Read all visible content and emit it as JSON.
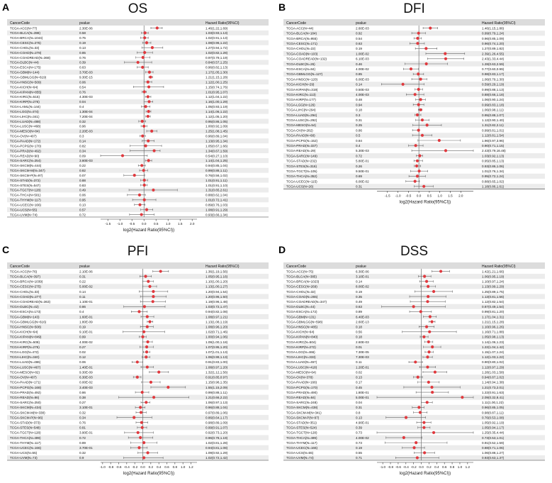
{
  "figure": {
    "panel_letters": [
      "A",
      "B",
      "C",
      "D"
    ]
  },
  "chart_data": [
    {
      "type": "forest",
      "letter": "A",
      "title": "OS",
      "headers": [
        "CancerCode",
        "pvalue",
        "Hazard Ratio(95%CI)"
      ],
      "xlabel": "log2(Hazard Ratio(95%CI))",
      "xlim": [
        -1.8,
        2.2
      ],
      "xticks": [
        "-1.5",
        "-1.0",
        "-0.5",
        "0.0",
        "0.5",
        "1.0",
        "1.5",
        "2.0"
      ],
      "rows": [
        {
          "code": "TCGA-ACC(N=77)",
          "p": "2.30E-06",
          "hr": "1.46(1.22,1.69)"
        },
        {
          "code": "TCGA-BLCA(N=398)",
          "p": "0.58",
          "hr": "1.03(0.93,1.13)"
        },
        {
          "code": "TCGA-BRCA(N=1044)",
          "p": "0.75",
          "hr": "1.02(0.91,1.13)"
        },
        {
          "code": "TCGA-CESC(N=275)",
          "p": "0.19",
          "hr": "1.08(0.96,1.22)"
        },
        {
          "code": "TCGA-CHOL(N=33)",
          "p": "0.13",
          "hr": "1.27(0.94,1.72)"
        },
        {
          "code": "TCGA-COAD(N=278)",
          "p": "0.85",
          "hr": "1.02(0.82,1.28)"
        },
        {
          "code": "TCGA-COADREAD(N=368)",
          "p": "0.76",
          "hr": "0.97(0.79,1.19)"
        },
        {
          "code": "TCGA-DLBC(N=44)",
          "p": "0.39",
          "hr": "0.84(0.57,1.25)"
        },
        {
          "code": "TCGA-ESCA(N=175)",
          "p": "0.63",
          "hr": "0.96(0.82,1.13)"
        },
        {
          "code": "TCGA-GBM(N=144)",
          "p": "3.70E-03",
          "hr": "1.17(1.05,1.30)"
        },
        {
          "code": "TCGA-GBMLGG(N=619)",
          "p": "9.30E-15",
          "hr": "1.21(1.15,1.28)"
        },
        {
          "code": "TCGA-HNSC(N=509)",
          "p": "0.06",
          "hr": "1.12(1.00,1.25)"
        },
        {
          "code": "TCGA-KICH(N=64)",
          "p": "0.54",
          "hr": "1.15(0.74,1.76)"
        },
        {
          "code": "TCGA-KIPAN(N=855)",
          "p": "0.76",
          "hr": "1.01(0.95,1.07)"
        },
        {
          "code": "TCGA-KIRC(N=515)",
          "p": "4.30E-03",
          "hr": "1.12(1.04,1.22)"
        },
        {
          "code": "TCGA-KIRP(N=276)",
          "p": "0.04",
          "hr": "1.16(1.00,1.29)"
        },
        {
          "code": "TCGA-LAML(N=144)",
          "p": "0.4",
          "hr": "1.05(0.93,1.19)"
        },
        {
          "code": "TCGA-LGG(N=474)",
          "p": "1.30E-04",
          "hr": "1.14(1.06,1.22)"
        },
        {
          "code": "TCGA-LIHC(N=341)",
          "p": "7.20E-04",
          "hr": "1.12(1.05,1.20)"
        },
        {
          "code": "TCGA-LUAD(N=488)",
          "p": "0.32",
          "hr": "0.95(0.86,1.05)"
        },
        {
          "code": "TCGA-LUSC(N=468)",
          "p": "0.96",
          "hr": "1.00(0.92,1.09)"
        },
        {
          "code": "TCGA-MESO(N=84)",
          "p": "2.20E-03",
          "hr": "1.25(1.08,1.45)"
        },
        {
          "code": "TCGA-OV(N=407)",
          "p": "0.3",
          "hr": "0.96(0.89,1.04)"
        },
        {
          "code": "TCGA-PAAD(N=172)",
          "p": "0.14",
          "hr": "1.13(0.95,1.34)"
        },
        {
          "code": "TCGA-PCPG(N=170)",
          "p": "0.82",
          "hr": "1.05(0.67,1.66)"
        },
        {
          "code": "TCGA-PRAD(N=492)",
          "p": "0.34",
          "hr": "1.34(0.67,1.59)"
        },
        {
          "code": "TCGA-READ(N=90)",
          "p": "0.09",
          "hr": "0.54(0.27,1.10)"
        },
        {
          "code": "TCGA-SARC(N=254)",
          "p": "3.80E-03",
          "hr": "1.14(1.04,1.25)"
        },
        {
          "code": "TCGA-SKCM(N=444)",
          "p": "0.22",
          "hr": "0.94(0.85,1.04)"
        },
        {
          "code": "TCGA-SKCM-M(N=347)",
          "p": "0.82",
          "hr": "0.99(0.88,1.11)"
        },
        {
          "code": "TCGA-SKCM-P(N=97)",
          "p": "0.07",
          "hr": "0.76(0.56,1.02)"
        },
        {
          "code": "TCGA-STAD(N=372)",
          "p": "0.88",
          "hr": "1.01(0.91,1.11)"
        },
        {
          "code": "TCGA-STES(N=547)",
          "p": "0.83",
          "hr": "1.01(0.91,1.10)"
        },
        {
          "code": "TCGA-TGCT(N=128)",
          "p": "0.49",
          "hr": "1.31(0.65,2.61)"
        },
        {
          "code": "TCGA-THCA(N=501)",
          "p": "0.06",
          "hr": "0.88(0.62,1.04)"
        },
        {
          "code": "TCGA-THYM(N=117)",
          "p": "0.95",
          "hr": "1.01(0.72,1.41)"
        },
        {
          "code": "TCGA-UCEC(N=166)",
          "p": "0.13",
          "hr": "0.89(0.76,1.03)"
        },
        {
          "code": "TCGA-UCS(N=55)",
          "p": "0.57",
          "hr": "1.08(0.91,1.29)"
        },
        {
          "code": "TCGA-UVM(N=74)",
          "p": "0.72",
          "hr": "0.93(0.66,1.34)"
        }
      ]
    },
    {
      "type": "forest",
      "letter": "B",
      "title": "DFI",
      "headers": [
        "CancerCode",
        "pvalue",
        "Hazard Ratio(95%CI)"
      ],
      "xlabel": "log2(Hazard Ratio(95%CI))",
      "xlim": [
        -2.0,
        2.6
      ],
      "xticks": [
        "-1.5",
        "-1.0",
        "-0.5",
        "0.0",
        "0.5",
        "1.0",
        "1.5",
        "2.0"
      ],
      "rows": [
        {
          "code": "TCGA-ACC(N=44)",
          "p": "2.60E-03",
          "hr": "1.46(1.15,1.86)"
        },
        {
          "code": "TCGA-BLCA(N=184)",
          "p": "0.92",
          "hr": "0.99(0.79,1.24)"
        },
        {
          "code": "TCGA-BRCA(N=955)",
          "p": "0.54",
          "hr": "0.96(0.85,1.09)"
        },
        {
          "code": "TCGA-CESC(N=171)",
          "p": "0.63",
          "hr": "0.96(0.74,1.20)"
        },
        {
          "code": "TCGA-CHOL(N=22)",
          "p": "0.19",
          "hr": "1.27(0.89,1.82)"
        },
        {
          "code": "TCGA-COAD(N=103)",
          "p": "1.00E-02",
          "hr": "2.39(1.26,4.55)"
        },
        {
          "code": "TCGA-COADREAD(N=132)",
          "p": "6.10E-03",
          "hr": "2.43(1.33,4.44)"
        },
        {
          "code": "TCGA-DLBC(N=26)",
          "p": "0.46",
          "hr": "1.28(0.63,2.59)"
        },
        {
          "code": "TCGA-ESCA(N=84)",
          "p": "4.00E-02",
          "hr": "0.77(0.60,0.99)"
        },
        {
          "code": "TCGA-GBMLGG(N=127)",
          "p": "0.85",
          "hr": "0.98(0.83,1.17)"
        },
        {
          "code": "TCGA-HNSC(N=120)",
          "p": "6.00E-03",
          "hr": "1.06(0.79,1.30)"
        },
        {
          "code": "TCGA-KICH(N=29)",
          "p": "0.14",
          "hr": "0.59(0.29,1.19)"
        },
        {
          "code": "TCGA-KIPAN(N=319)",
          "p": "0.50E-03",
          "hr": "0.99(0.88,1.13)"
        },
        {
          "code": "TCGA-KIRC(N=113)",
          "p": "4.00E-03",
          "hr": "0.88(0.66,1.18)"
        },
        {
          "code": "TCGA-KIRP(N=177)",
          "p": "0.48",
          "hr": "1.06(0.90,1.24)"
        },
        {
          "code": "TCGA-LGG(N=126)",
          "p": "0.94",
          "hr": "0.99(0.83,1.18)"
        },
        {
          "code": "TCGA-LIHC(N=294)",
          "p": "0.18",
          "hr": "1.06(0.98,1.11)"
        },
        {
          "code": "TCGA-LUAD(N=294)",
          "p": "0.3",
          "hr": "0.95(0.88,1.07)"
        },
        {
          "code": "TCGA-LUSC(N=292)",
          "p": "0.31",
          "hr": "1.12(0.90,1.40)"
        },
        {
          "code": "TCGA-MESO(N=54)",
          "p": "0.25",
          "hr": "1.31(0.82,2.11)"
        },
        {
          "code": "TCGA-OV(N=282)",
          "p": "0.86",
          "hr": "0.99(0.81,1.01)"
        },
        {
          "code": "TCGA-PAAD(N=68)",
          "p": "0.5",
          "hr": "1.12(0.81,1.54)"
        },
        {
          "code": "TCGA-PCPG(N=152)",
          "p": "0.84",
          "hr": "1.96(0.97,3.96)"
        },
        {
          "code": "TCGA-PRAD(N=337)",
          "p": "0.4",
          "hr": "0.90(0.71,1.15)"
        },
        {
          "code": "TCGA-READ(N=29)",
          "p": "5.30E-03",
          "hr": "2.43(0.79,16.48)"
        },
        {
          "code": "TCGA-SARC(N=149)",
          "p": "0.72",
          "hr": "1.03(0.92,1.13)"
        },
        {
          "code": "TCGA-STAD(N=232)",
          "p": "5.80E-01",
          "hr": "0.95(0.85,1.13)"
        },
        {
          "code": "TCGA-STES(N=316)",
          "p": "0.26",
          "hr": "0.93(0.86,1.06)"
        },
        {
          "code": "TCGA-TGCT(N=105)",
          "p": "9.50E-01",
          "hr": "1.01(0.76,1.34)"
        },
        {
          "code": "TCGA-THCA(N=352)",
          "p": "0.69",
          "hr": "0.95(0.72,1.24)"
        },
        {
          "code": "TCGA-UCEC(N=115)",
          "p": "6.00E-02",
          "hr": "0.88(0.65,1.02)"
        },
        {
          "code": "TCGA-UCS(N=26)",
          "p": "0.31",
          "hr": "1.18(0.86,1.61)"
        }
      ]
    },
    {
      "type": "forest",
      "letter": "C",
      "title": "PFI",
      "headers": [
        "CancerCode",
        "pvalue",
        "Hazard Ratio(95%CI)"
      ],
      "xlabel": "log2(Hazard Ratio(95%CI))",
      "xlim": [
        -1.05,
        1.35
      ],
      "xticks": [
        "-1.0",
        "-0.8",
        "-0.6",
        "-0.4",
        "-0.2",
        "0.0",
        "0.2",
        "0.4",
        "0.6",
        "0.8",
        "1.0",
        "1.2"
      ],
      "rows": [
        {
          "code": "TCGA-ACC(N=76)",
          "p": "2.10E-06",
          "hr": "1.36(1.19,1.56)"
        },
        {
          "code": "TCGA-BLCA(N=397)",
          "p": "0.31",
          "hr": "1.05(0.95,1.16)"
        },
        {
          "code": "TCGA-BRCA(N=1039)",
          "p": "0.22",
          "hr": "1.10(1.00,1.20)"
        },
        {
          "code": "TCGA-CESC(N=275)",
          "p": "5.00E-02",
          "hr": "1.13(1.00,1.27)"
        },
        {
          "code": "TCGA-CHOL(N=33)",
          "p": "0.14",
          "hr": "1.20(0.94,1.54)"
        },
        {
          "code": "TCGA-COAD(N=277)",
          "p": "0.11",
          "hr": "1.20(0.96,1.50)"
        },
        {
          "code": "TCGA-COADREAD(N=363)",
          "p": "1.10E-01",
          "hr": "1.19(0.96,1.48)"
        },
        {
          "code": "TCGA-DLBC(N=42)",
          "p": "0.86",
          "hr": "1.03(0.72,1.47)"
        },
        {
          "code": "TCGA-ESCA(N=173)",
          "p": "0.4",
          "hr": "0.94(0.82,1.08)"
        },
        {
          "code": "TCGA-GBM(N=143)",
          "p": "1.60E-01",
          "hr": "1.08(0.97,1.21)"
        },
        {
          "code": "TCGA-GBMLGG(N=616)",
          "p": "1.80E-09",
          "hr": "1.13(1.08,1.19)"
        },
        {
          "code": "TCGA-HNSC(N=508)",
          "p": "0.19",
          "hr": "1.08(0.96,1.20)"
        },
        {
          "code": "TCGA-KICH(N=64)",
          "p": "9.10E-01",
          "hr": "1.02(0.71,1.46)"
        },
        {
          "code": "TCGA-KIPAN(N=849)",
          "p": "0.99",
          "hr": "1.00(0.94,1.06)"
        },
        {
          "code": "TCGA-KIRC(N=508)",
          "p": "4.00E-02",
          "hr": "1.09(1.00,1.18)"
        },
        {
          "code": "TCGA-KIRP(N=275)",
          "p": "0.27",
          "hr": "1.07(0.95,1.20)"
        },
        {
          "code": "TCGA-LGG(N=472)",
          "p": "0.02",
          "hr": "1.07(1.01,1.13)"
        },
        {
          "code": "TCGA-LIHC(N=340)",
          "p": "0.12",
          "hr": "1.06(0.99,1.13)"
        },
        {
          "code": "TCGA-LUAD(N=486)",
          "p": "0.06",
          "hr": "0.91(0.83,1.00)"
        },
        {
          "code": "TCGA-LUSC(N=467)",
          "p": "1.40E-01",
          "hr": "1.08(0.97,1.20)"
        },
        {
          "code": "TCGA-MESO(N=82)",
          "p": "9.30E-09",
          "hr": "1.32(1.12,1.56)"
        },
        {
          "code": "TCGA-OV(N=407)",
          "p": "6.30E-03",
          "hr": "0.91(0.85,0.97)"
        },
        {
          "code": "TCGA-PAAD(N=171)",
          "p": "0.00E-02",
          "hr": "1.15(0.98,1.35)"
        },
        {
          "code": "TCGA-PCPG(N=168)",
          "p": "3.40E-03",
          "hr": "1.55(1.15,2.09)"
        },
        {
          "code": "TCGA-PRAD(N=492)",
          "p": "0.86",
          "hr": "0.99(0.88,1.11)"
        },
        {
          "code": "TCGA-READ(N=86)",
          "p": "0.38",
          "hr": "1.21(0.66,2.22)"
        },
        {
          "code": "TCGA-SARC(N=250)",
          "p": "0.27",
          "hr": "1.06(0.97,1.13)"
        },
        {
          "code": "TCGA-SKCM(N=434)",
          "p": "3.10E-01",
          "hr": "0.96(0.88,1.04)"
        },
        {
          "code": "TCGA-SKCM-M(N=338)",
          "p": "0.32",
          "hr": "0.97(0.89,1.06)"
        },
        {
          "code": "TCGA-SKCM-P(N=96)",
          "p": "0.34",
          "hr": "0.86(0.64,1.17)"
        },
        {
          "code": "TCGA-STAD(N=373)",
          "p": "0.76",
          "hr": "0.98(0.89,1.09)"
        },
        {
          "code": "TCGA-STES(N=548)",
          "p": "0.81",
          "hr": "0.99(0.91,1.07)"
        },
        {
          "code": "TCGA-TGCT(N=128)",
          "p": "3.90E-01",
          "hr": "0.92(0.73,1.20)"
        },
        {
          "code": "TCGA-THCA(N=499)",
          "p": "0.72",
          "hr": "0.96(0.78,1.19)"
        },
        {
          "code": "TCGA-THYM(N=117)",
          "p": "0.89",
          "hr": "1.02(0.81,1.28)"
        },
        {
          "code": "TCGA-UCEC(N=166)",
          "p": "3.70E-01",
          "hr": "0.94(0.81,1.08)"
        },
        {
          "code": "TCGA-UCS(N=55)",
          "p": "0.32",
          "hr": "1.09(0.92,1.29)"
        },
        {
          "code": "TCGA-UVM(N=73)",
          "p": "0.9",
          "hr": "1.02(0.72,1.42)"
        }
      ]
    },
    {
      "type": "forest",
      "letter": "D",
      "title": "DSS",
      "headers": [
        "CancerCode",
        "pvalue",
        "Hazard Ratio(95%CI)"
      ],
      "xlabel": "log2(Hazard Ratio(95%CI))",
      "xlim": [
        -1.15,
        1.35
      ],
      "xticks": [
        "-1.0",
        "-0.8",
        "-0.6",
        "-0.4",
        "-0.2",
        "0.0",
        "0.2",
        "0.4",
        "0.6",
        "0.8",
        "1.0",
        "1.2"
      ],
      "rows": [
        {
          "code": "TCGA-ACC(N=75)",
          "p": "6.30E-06",
          "hr": "1.42(1.21,1.66)"
        },
        {
          "code": "TCGA-BLCA(N=385)",
          "p": "3.10E-01",
          "hr": "1.06(0.95,1.19)"
        },
        {
          "code": "TCGA-BRCA(N=1023)",
          "p": "0.14",
          "hr": "1.10(0.97,1.24)"
        },
        {
          "code": "TCGA-CESC(N=269)",
          "p": "8.00E-02",
          "hr": "1.13(0.99,1.29)"
        },
        {
          "code": "TCGA-CHOL(N=32)",
          "p": "0.19",
          "hr": "1.25(0.89,1.75)"
        },
        {
          "code": "TCGA-COAD(N=265)",
          "p": "0.35",
          "hr": "1.13(0.81,1.56)"
        },
        {
          "code": "TCGA-COADREAD(N=347)",
          "p": "0.49",
          "hr": "1.12(0.82,1.54)"
        },
        {
          "code": "TCGA-DLBC(N=44)",
          "p": "0.63",
          "hr": "0.87(0.49,1.54)"
        },
        {
          "code": "TCGA-ESCA(N=172)",
          "p": "0.89",
          "hr": "0.99(0.81,1.20)"
        },
        {
          "code": "TCGA-GBM(N=131)",
          "p": "6.40E-03",
          "hr": "1.17(1.04,1.31)"
        },
        {
          "code": "TCGA-GBMLGG(N=598)",
          "p": "2.60E-13",
          "hr": "1.21(1.15,1.28)"
        },
        {
          "code": "TCGA-HNSC(N=485)",
          "p": "0.18",
          "hr": "1.10(0.96,1.26)"
        },
        {
          "code": "TCGA-KICH(N=64)",
          "p": "0.56",
          "hr": "1.16(0.71,1.88)"
        },
        {
          "code": "TCGA-KIPAN(N=840)",
          "p": "0.18",
          "hr": "1.05(0.98,1.13)"
        },
        {
          "code": "TCGA-KIRC(N=504)",
          "p": "2.60E-03",
          "hr": "1.14(1.06,1.23)"
        },
        {
          "code": "TCGA-KIRP(N=272)",
          "p": "0.01",
          "hr": "1.22(1.04,1.42)"
        },
        {
          "code": "TCGA-LGG(N=466)",
          "p": "7.30E-05",
          "hr": "1.15(1.07,1.24)"
        },
        {
          "code": "TCGA-LIHC(N=333)",
          "p": "7.30E-03",
          "hr": "1.12(1.03,1.22)"
        },
        {
          "code": "TCGA-LUAD(N=457)",
          "p": "0.11",
          "hr": "0.90(0.80,1.02)"
        },
        {
          "code": "TCGA-LUSC(N=418)",
          "p": "1.20E-01",
          "hr": "1.12(0.97,1.29)"
        },
        {
          "code": "TCGA-MESO(N=64)",
          "p": "0.02",
          "hr": "1.28(1.03,1.58)"
        },
        {
          "code": "TCGA-OV(N=378)",
          "p": "0.13",
          "hr": "0.94(0.87,1.02)"
        },
        {
          "code": "TCGA-PAAD(N=166)",
          "p": "0.17",
          "hr": "1.14(0.94,1.38)"
        },
        {
          "code": "TCGA-PCPG(N=170)",
          "p": "0.45",
          "hr": "1.21(0.73,2.01)"
        },
        {
          "code": "TCGA-PRAD(N=490)",
          "p": "1.80E-01",
          "hr": "1.22(0.91,1.63)"
        },
        {
          "code": "TCGA-READ(N=84)",
          "p": "5.00E-01",
          "hr": "2.09(0.32,8.41)"
        },
        {
          "code": "TCGA-SARC(N=248)",
          "p": "0.04",
          "hr": "1.11(1.00,1.22)"
        },
        {
          "code": "TCGA-SKCM(N=438)",
          "p": "0.31",
          "hr": "0.96(0.85,1.05)"
        },
        {
          "code": "TCGA-SKCM-M(N=341)",
          "p": "0.8",
          "hr": "0.98(0.87,1.11)"
        },
        {
          "code": "TCGA-SKCM-P(N=97)",
          "p": "0.13",
          "hr": "0.76(0.53,1.08)"
        },
        {
          "code": "TCGA-STAD(N=351)",
          "p": "4.90E-01",
          "hr": "1.05(0.92,1.19)"
        },
        {
          "code": "TCGA-STES(N=524)",
          "p": "0.39",
          "hr": "1.05(0.94,1.17)"
        },
        {
          "code": "TCGA-TGCT(N=128)",
          "p": "0.73",
          "hr": "1.25(0.35,4.44)"
        },
        {
          "code": "TCGA-THCA(N=499)",
          "p": "4.00E-02",
          "hr": "0.73(0.53,1.01)"
        },
        {
          "code": "TCGA-THYM(N=117)",
          "p": "0.73",
          "hr": "0.91(0.52,1.59)"
        },
        {
          "code": "TCGA-UCEC(N=166)",
          "p": "0.19",
          "hr": "0.88(0.71,1.06)"
        },
        {
          "code": "TCGA-UCS(N=55)",
          "p": "0.55",
          "hr": "1.06(0.88,1.27)"
        },
        {
          "code": "TCGA-UVM(N=74)",
          "p": "0.71",
          "hr": "0.93(0.63,1.37)"
        }
      ]
    }
  ]
}
